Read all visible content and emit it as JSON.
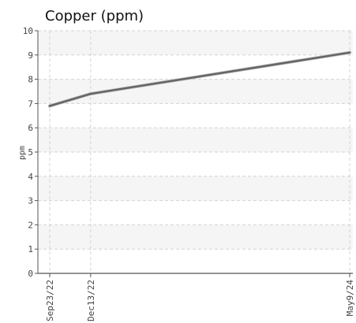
{
  "chart_data": {
    "type": "line",
    "title": "Copper (ppm)",
    "xlabel": "",
    "ylabel": "ppm",
    "categories": [
      "Sep23/22",
      "Dec13/22",
      "May9/24"
    ],
    "x": [
      "2022-09-23",
      "2022-12-13",
      "2024-05-09"
    ],
    "series": [
      {
        "values": [
          6.9,
          7.4,
          9.1
        ]
      }
    ],
    "ylim": [
      0,
      10
    ],
    "yticks": [
      0,
      1,
      2,
      3,
      4,
      5,
      6,
      7,
      8,
      9,
      10
    ],
    "grid": true,
    "alternating_bands": true,
    "legend": "none",
    "colors": {
      "line": "#666666",
      "band": "#f5f5f5",
      "grid": "#d4d4d4",
      "axis": "#555555"
    }
  }
}
